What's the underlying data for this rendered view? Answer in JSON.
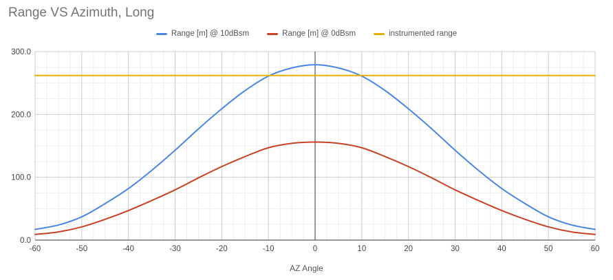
{
  "chart_data": {
    "type": "line",
    "title": "Range VS Azimuth, Long",
    "xlabel": "AZ Angle",
    "ylabel": "",
    "xlim": [
      -60,
      60
    ],
    "ylim": [
      0,
      300
    ],
    "x_ticks": [
      -60,
      -50,
      -40,
      -30,
      -20,
      -10,
      0,
      10,
      20,
      30,
      40,
      50,
      60
    ],
    "y_ticks": [
      "0.0",
      "100.0",
      "200.0",
      "300.0"
    ],
    "grid": true,
    "legend_position": "top-center",
    "x": [
      -60,
      -55,
      -50,
      -45,
      -40,
      -35,
      -30,
      -25,
      -20,
      -15,
      -10,
      -5,
      0,
      5,
      10,
      15,
      20,
      25,
      30,
      35,
      40,
      45,
      50,
      55,
      60
    ],
    "series": [
      {
        "name": "Range [m] @ 10dBsm",
        "color": "#4a86e8",
        "values": [
          17,
          24,
          37,
          58,
          82,
          111,
          143,
          177,
          209,
          238,
          261,
          274,
          279,
          274,
          261,
          238,
          209,
          177,
          143,
          111,
          82,
          58,
          37,
          24,
          17
        ]
      },
      {
        "name": "Range [m] @ 0dBsm",
        "color": "#cc4125",
        "values": [
          9,
          13,
          21,
          33,
          47,
          63,
          80,
          99,
          117,
          133,
          147,
          154,
          156,
          154,
          147,
          133,
          117,
          99,
          80,
          63,
          47,
          33,
          21,
          13,
          9
        ]
      },
      {
        "name": "instrumented range",
        "color": "#e6b000",
        "values": [
          262,
          262,
          262,
          262,
          262,
          262,
          262,
          262,
          262,
          262,
          262,
          262,
          262,
          262,
          262,
          262,
          262,
          262,
          262,
          262,
          262,
          262,
          262,
          262,
          262
        ]
      }
    ]
  }
}
